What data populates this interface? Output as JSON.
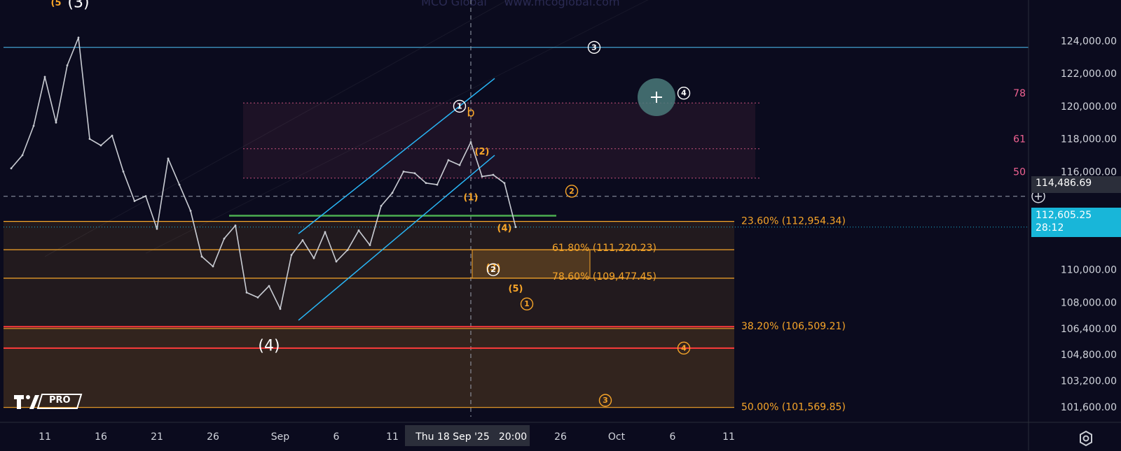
{
  "watermark": {
    "name": "MCO Global",
    "url": "www.mcoglobal.com"
  },
  "logo": {
    "badge": "PRO"
  },
  "chart_data": {
    "type": "line",
    "ylim": [
      101000,
      126500
    ],
    "y_ticks": [
      {
        "label": "124,000.00",
        "value": 124000
      },
      {
        "label": "122,000.00",
        "value": 122000
      },
      {
        "label": "120,000.00",
        "value": 120000
      },
      {
        "label": "118,000.00",
        "value": 118000
      },
      {
        "label": "116,000.00",
        "value": 116000
      },
      {
        "label": "110,000.00",
        "value": 110000
      },
      {
        "label": "108,000.00",
        "value": 108000
      },
      {
        "label": "106,400.00",
        "value": 106400
      },
      {
        "label": "104,800.00",
        "value": 104800
      },
      {
        "label": "103,200.00",
        "value": 103200
      },
      {
        "label": "101,600.00",
        "value": 101600
      }
    ],
    "x_ticks": [
      "11",
      "16",
      "21",
      "26",
      "Sep",
      "6",
      "11",
      "26",
      "Oct",
      "6",
      "11"
    ],
    "crosshair": {
      "date_label": "Thu 18 Sep '25",
      "time_label": "20:00",
      "price_label": "114,486.69",
      "price": 114486.69
    },
    "last_price": {
      "label": "112,605.25",
      "countdown": "28:12",
      "value": 112605.25
    },
    "price_series": [
      {
        "date": "Aug 8",
        "price": 116200
      },
      {
        "date": "Aug 9",
        "price": 117000
      },
      {
        "date": "Aug 10",
        "price": 118800
      },
      {
        "date": "Aug 11",
        "price": 121800
      },
      {
        "date": "Aug 12",
        "price": 119000
      },
      {
        "date": "Aug 13",
        "price": 122500
      },
      {
        "date": "Aug 14",
        "price": 124200
      },
      {
        "date": "Aug 15",
        "price": 118000
      },
      {
        "date": "Aug 16",
        "price": 117600
      },
      {
        "date": "Aug 17",
        "price": 118200
      },
      {
        "date": "Aug 18",
        "price": 116000
      },
      {
        "date": "Aug 19",
        "price": 114200
      },
      {
        "date": "Aug 20",
        "price": 114500
      },
      {
        "date": "Aug 21",
        "price": 112500
      },
      {
        "date": "Aug 22",
        "price": 116800
      },
      {
        "date": "Aug 23",
        "price": 115200
      },
      {
        "date": "Aug 24",
        "price": 113600
      },
      {
        "date": "Aug 25",
        "price": 110800
      },
      {
        "date": "Aug 26",
        "price": 110200
      },
      {
        "date": "Aug 27",
        "price": 111900
      },
      {
        "date": "Aug 28",
        "price": 112700
      },
      {
        "date": "Aug 29",
        "price": 108600
      },
      {
        "date": "Aug 30",
        "price": 108300
      },
      {
        "date": "Aug 31",
        "price": 109000
      },
      {
        "date": "Sep 1",
        "price": 107600
      },
      {
        "date": "Sep 2",
        "price": 110900
      },
      {
        "date": "Sep 3",
        "price": 111800
      },
      {
        "date": "Sep 4",
        "price": 110700
      },
      {
        "date": "Sep 5",
        "price": 112300
      },
      {
        "date": "Sep 6",
        "price": 110500
      },
      {
        "date": "Sep 7",
        "price": 111200
      },
      {
        "date": "Sep 8",
        "price": 112400
      },
      {
        "date": "Sep 9",
        "price": 111500
      },
      {
        "date": "Sep 10",
        "price": 113900
      },
      {
        "date": "Sep 11",
        "price": 114700
      },
      {
        "date": "Sep 12",
        "price": 116000
      },
      {
        "date": "Sep 13",
        "price": 115900
      },
      {
        "date": "Sep 14",
        "price": 115300
      },
      {
        "date": "Sep 15",
        "price": 115200
      },
      {
        "date": "Sep 16",
        "price": 116700
      },
      {
        "date": "Sep 17",
        "price": 116400
      },
      {
        "date": "Sep 18",
        "price": 117800
      },
      {
        "date": "Sep 19",
        "price": 115700
      },
      {
        "date": "Sep 20",
        "price": 115800
      },
      {
        "date": "Sep 21",
        "price": 115300
      },
      {
        "date": "Sep 22",
        "price": 112605.25
      }
    ],
    "fib_levels": [
      {
        "label": "23.60% (112,954.34)",
        "value": 112954.34,
        "color": "#f7a529"
      },
      {
        "label": "61.80% (111,220.23)",
        "value": 111220.23,
        "color": "#f7a529"
      },
      {
        "label": "78.60% (109,477.45)",
        "value": 109477.45,
        "color": "#f7a529"
      },
      {
        "label": "38.20% (106,509.21)",
        "value": 106509.21,
        "color": "#f7a529"
      },
      {
        "label": "50.00% (101,569.85)",
        "value": 101569.85,
        "color": "#f7a529"
      }
    ],
    "zone_labels": [
      "78",
      "61",
      "50"
    ],
    "wave_labels": [
      {
        "text": "(5",
        "style": "orange-small",
        "date": "Aug 12",
        "price": 126300
      },
      {
        "text": "(3)",
        "style": "white-large",
        "date": "Aug 14",
        "price": 126300
      },
      {
        "text": "(4)",
        "style": "white-large",
        "date": "Aug 31",
        "price": 105300
      },
      {
        "text": "b",
        "style": "orange",
        "date": "Sep 18",
        "price": 119600
      },
      {
        "text": "(2)",
        "style": "orange-small",
        "date": "Sep 19",
        "price": 117200
      },
      {
        "text": "(1)",
        "style": "orange-small",
        "date": "Sep 18",
        "price": 114400
      },
      {
        "text": "(4)",
        "style": "orange-small",
        "date": "Sep 21",
        "price": 112500
      },
      {
        "text": "(3)",
        "style": "orange-small",
        "date": "Sep 20",
        "price": 110100
      },
      {
        "text": "(5)",
        "style": "orange-small",
        "date": "Sep 22",
        "price": 108800
      }
    ],
    "circled_labels": [
      {
        "text": "1",
        "style": "white",
        "date": "Sep 17",
        "price": 120000
      },
      {
        "text": "2",
        "style": "white",
        "date": "Sep 20",
        "price": 110000
      },
      {
        "text": "3",
        "style": "white",
        "date": "Sep 29",
        "price": 123600
      },
      {
        "text": "4",
        "style": "white",
        "date": "Oct 7",
        "price": 120800
      },
      {
        "text": "2",
        "style": "orange",
        "date": "Sep 27",
        "price": 114800
      },
      {
        "text": "1",
        "style": "orange",
        "date": "Sep 23",
        "price": 107900
      },
      {
        "text": "4",
        "style": "orange",
        "date": "Oct 7",
        "price": 105200
      },
      {
        "text": "3",
        "style": "orange",
        "date": "Sep 30",
        "price": 102000
      }
    ],
    "colors": {
      "background": "#0b0b1e",
      "candles": "#c9ccd3",
      "fib": "#f7a529",
      "support": "#ff3b3b",
      "green_line": "#4caf50",
      "channel": "#29b6f6",
      "resistance": "#4fc3f7",
      "zone": "#f06292",
      "last_price_bg": "#18b6d9"
    }
  }
}
